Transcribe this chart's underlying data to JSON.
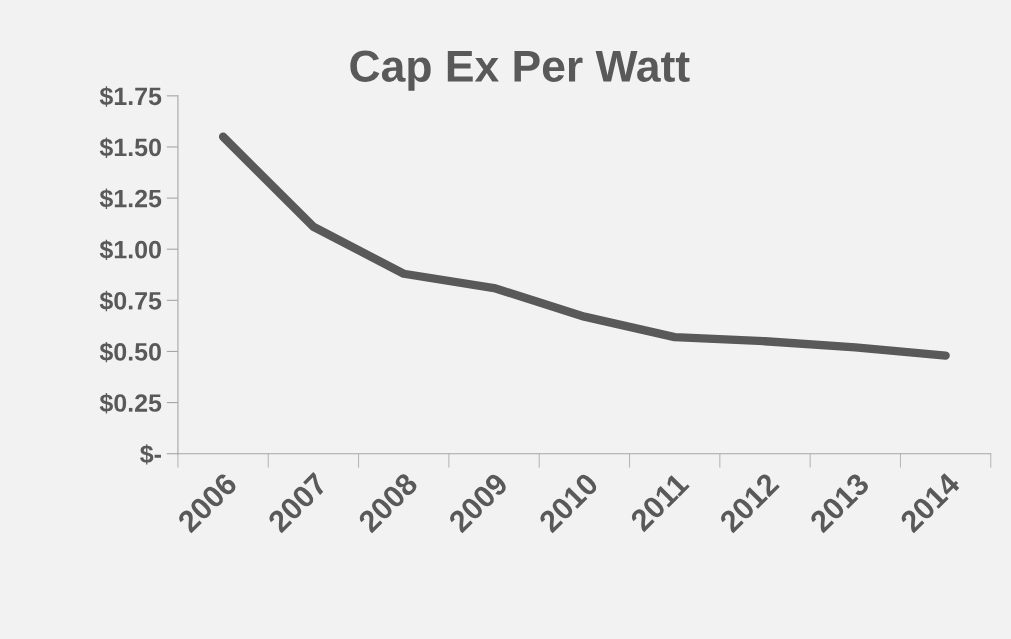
{
  "chart_data": {
    "type": "line",
    "title": "Cap Ex Per Watt",
    "categories": [
      "2006",
      "2007",
      "2008",
      "2009",
      "2010",
      "2011",
      "2012",
      "2013",
      "2014"
    ],
    "series": [
      {
        "color": "#595959",
        "values": [
          1.55,
          1.11,
          0.88,
          0.81,
          0.67,
          0.57,
          0.55,
          0.52,
          0.48
        ]
      }
    ],
    "ylim": [
      0,
      1.75
    ],
    "yticks": [
      {
        "value": 0,
        "label": "$-"
      },
      {
        "value": 0.25,
        "label": "$0.25"
      },
      {
        "value": 0.5,
        "label": "$0.50"
      },
      {
        "value": 0.75,
        "label": "$0.75"
      },
      {
        "value": 1.0,
        "label": "$1.00"
      },
      {
        "value": 1.25,
        "label": "$1.25"
      },
      {
        "value": 1.5,
        "label": "$1.50"
      },
      {
        "value": 1.75,
        "label": "$1.75"
      }
    ],
    "marker": "none",
    "line_style": "solid"
  }
}
